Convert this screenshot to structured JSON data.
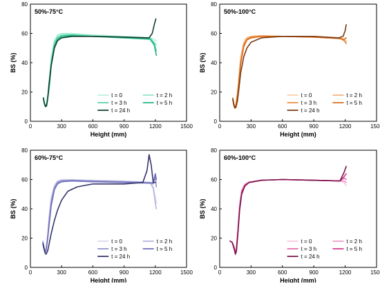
{
  "chart_data": [
    {
      "type": "line",
      "title": "50%-75°C",
      "xlabel": "Height (mm)",
      "ylabel": "BS (%)",
      "xlim": [
        0,
        1500
      ],
      "ylim": [
        0,
        80
      ],
      "xticks": [
        "0",
        "300",
        "600",
        "900",
        "1200",
        "1500"
      ],
      "yticks": [
        "0",
        "20",
        "40",
        "60",
        "80"
      ],
      "legend_placement": "bottom-right",
      "series": [
        {
          "name": "t = 0",
          "color": "#b9f1dd",
          "x": [
            125,
            135,
            145,
            155,
            170,
            185,
            200,
            230,
            260,
            300,
            400,
            600,
            900,
            1150,
            1190,
            1210
          ],
          "y": [
            14,
            12,
            11,
            12,
            20,
            32,
            44,
            55,
            59,
            60,
            60,
            59,
            58,
            57,
            56,
            55
          ]
        },
        {
          "name": "t = 2 h",
          "color": "#8fe5c7",
          "x": [
            125,
            135,
            145,
            155,
            170,
            185,
            200,
            230,
            260,
            300,
            400,
            600,
            900,
            1150,
            1190,
            1210
          ],
          "y": [
            15,
            12,
            11,
            12,
            19,
            30,
            42,
            54,
            58,
            59.5,
            59.5,
            58.5,
            57.5,
            57,
            54,
            52
          ]
        },
        {
          "name": "t = 3 h",
          "color": "#56d2a5",
          "x": [
            125,
            135,
            145,
            155,
            170,
            185,
            200,
            230,
            260,
            300,
            400,
            600,
            900,
            1150,
            1190,
            1210
          ],
          "y": [
            16,
            12,
            11,
            12,
            18,
            28,
            40,
            53,
            57,
            58.5,
            59,
            58,
            57.5,
            56.5,
            53,
            48
          ]
        },
        {
          "name": "t = 5 h",
          "color": "#1fb487",
          "x": [
            125,
            135,
            145,
            155,
            170,
            185,
            200,
            230,
            260,
            300,
            400,
            600,
            900,
            1150,
            1190,
            1210
          ],
          "y": [
            16,
            12,
            10.5,
            11,
            17,
            26,
            38,
            51,
            56,
            58,
            58.5,
            58,
            57,
            56,
            52,
            45
          ]
        },
        {
          "name": "t = 24 h",
          "color": "#0f3d2c",
          "x": [
            125,
            135,
            145,
            155,
            165,
            180,
            200,
            230,
            260,
            300,
            400,
            600,
            900,
            1140,
            1170,
            1190,
            1205
          ],
          "y": [
            16,
            12,
            10,
            10.5,
            15,
            26,
            38,
            50,
            55,
            57,
            58,
            58,
            57.5,
            57,
            60,
            66,
            70
          ]
        }
      ]
    },
    {
      "type": "line",
      "title": "50%-100°C",
      "xlabel": "Height (mm)",
      "ylabel": "BS (%)",
      "xlim": [
        0,
        1500
      ],
      "ylim": [
        0,
        80
      ],
      "xticks": [
        "0",
        "300",
        "600",
        "900",
        "1200",
        "1500"
      ],
      "yticks": [
        "0",
        "20",
        "40",
        "60",
        "80"
      ],
      "legend_placement": "bottom-right",
      "series": [
        {
          "name": "t = 0",
          "color": "#f7cfa6",
          "x": [
            125,
            135,
            145,
            155,
            170,
            185,
            200,
            230,
            260,
            300,
            400,
            600,
            900,
            1150,
            1190,
            1210
          ],
          "y": [
            15,
            12,
            10,
            12,
            20,
            32,
            44,
            54,
            57,
            58,
            58.5,
            58,
            57.5,
            57,
            56,
            55
          ]
        },
        {
          "name": "t = 2 h",
          "color": "#f3b27a",
          "x": [
            125,
            135,
            145,
            155,
            170,
            185,
            200,
            230,
            260,
            300,
            400,
            600,
            900,
            1150,
            1190,
            1210
          ],
          "y": [
            15,
            12,
            10,
            11.5,
            19,
            30,
            42,
            53,
            57,
            58,
            58.5,
            58,
            57.5,
            57,
            55.5,
            54
          ]
        },
        {
          "name": "t = 3 h",
          "color": "#eb8b3c",
          "x": [
            125,
            135,
            145,
            155,
            170,
            185,
            200,
            230,
            260,
            300,
            400,
            600,
            900,
            1150,
            1190,
            1210
          ],
          "y": [
            15,
            12,
            10,
            11,
            18,
            28,
            40,
            52,
            56,
            57.5,
            58,
            58,
            57.5,
            56.5,
            55,
            53
          ]
        },
        {
          "name": "t = 5 h",
          "color": "#d86a18",
          "x": [
            125,
            135,
            145,
            155,
            170,
            185,
            200,
            230,
            260,
            300,
            400,
            600,
            900,
            1150,
            1190,
            1210
          ],
          "y": [
            16,
            12,
            9.5,
            10.5,
            17,
            27,
            39,
            51,
            55.5,
            57,
            58,
            58,
            57.5,
            56.5,
            56,
            57
          ]
        },
        {
          "name": "t = 24 h",
          "color": "#7a3a12",
          "x": [
            125,
            135,
            145,
            155,
            170,
            185,
            200,
            230,
            260,
            300,
            400,
            600,
            900,
            1140,
            1180,
            1200,
            1210
          ],
          "y": [
            15,
            11,
            9,
            9.5,
            14,
            23,
            33,
            44,
            50,
            54,
            57,
            58,
            58,
            57,
            58,
            62,
            66
          ]
        }
      ]
    },
    {
      "type": "line",
      "title": "60%-75°C",
      "xlabel": "Height (mm)",
      "ylabel": "BS (%)",
      "xlim": [
        0,
        1500
      ],
      "ylim": [
        0,
        80
      ],
      "xticks": [
        "0",
        "300",
        "600",
        "900",
        "1200",
        "1500"
      ],
      "yticks": [
        "0",
        "20",
        "40",
        "60",
        "80"
      ],
      "legend_placement": "bottom-right",
      "series": [
        {
          "name": "t = 0",
          "color": "#d7d7ef",
          "x": [
            120,
            130,
            140,
            150,
            165,
            180,
            200,
            230,
            260,
            300,
            400,
            600,
            900,
            1150,
            1180,
            1200,
            1210
          ],
          "y": [
            18,
            14,
            11,
            12,
            22,
            35,
            48,
            56,
            59,
            60,
            60,
            59.5,
            59,
            58,
            55,
            48,
            44
          ]
        },
        {
          "name": "t = 2 h",
          "color": "#b3b3df",
          "x": [
            120,
            130,
            140,
            150,
            165,
            180,
            200,
            230,
            260,
            300,
            400,
            600,
            900,
            1150,
            1180,
            1200,
            1210
          ],
          "y": [
            18,
            14,
            11,
            12,
            21,
            33,
            46,
            55,
            58.5,
            59.5,
            59.5,
            59,
            58.5,
            58,
            54,
            44,
            40
          ]
        },
        {
          "name": "t = 3 h",
          "color": "#9090cc",
          "x": [
            120,
            130,
            140,
            150,
            165,
            180,
            200,
            230,
            260,
            300,
            400,
            600,
            900,
            1150,
            1180,
            1200,
            1210
          ],
          "y": [
            17,
            14,
            11,
            12,
            20,
            31,
            44,
            54,
            58,
            59,
            59.5,
            59,
            58.5,
            58,
            57,
            62,
            55
          ]
        },
        {
          "name": "t = 5 h",
          "color": "#6e6eb8",
          "x": [
            120,
            130,
            140,
            150,
            165,
            180,
            200,
            230,
            260,
            300,
            400,
            600,
            900,
            1150,
            1180,
            1200,
            1210
          ],
          "y": [
            17,
            13,
            10.5,
            11,
            19,
            29,
            42,
            53,
            57,
            58.5,
            59,
            58.5,
            58,
            57.5,
            58,
            64,
            60
          ]
        },
        {
          "name": "t = 24 h",
          "color": "#33336b",
          "x": [
            120,
            130,
            140,
            150,
            165,
            180,
            200,
            230,
            260,
            300,
            360,
            450,
            600,
            900,
            1080,
            1120,
            1140,
            1160,
            1180,
            1200
          ],
          "y": [
            16,
            13,
            10,
            9,
            11,
            16,
            23,
            32,
            39,
            46,
            52,
            55,
            57,
            57,
            58,
            66,
            77,
            70,
            58,
            58
          ]
        }
      ]
    },
    {
      "type": "line",
      "title": "60%-100°C",
      "xlabel": "Height (mm)",
      "ylabel": "BS (%)",
      "xlim": [
        0,
        1500
      ],
      "ylim": [
        0,
        80
      ],
      "xticks": [
        "0",
        "300",
        "600",
        "900",
        "1200",
        "1500"
      ],
      "yticks": [
        "0",
        "20",
        "40",
        "60",
        "80"
      ],
      "legend_placement": "bottom-right",
      "series": [
        {
          "name": "t = 0",
          "color": "#f7c6e0",
          "x": [
            100,
            120,
            140,
            150,
            160,
            175,
            190,
            210,
            240,
            280,
            400,
            600,
            900,
            1150,
            1190,
            1210
          ],
          "y": [
            18,
            17,
            14,
            11,
            14,
            28,
            43,
            53,
            57,
            58.5,
            59.5,
            60,
            59.5,
            59,
            58,
            56
          ]
        },
        {
          "name": "t = 2 h",
          "color": "#f09ac7",
          "x": [
            100,
            120,
            140,
            150,
            160,
            175,
            190,
            210,
            240,
            280,
            400,
            600,
            900,
            1150,
            1190,
            1210
          ],
          "y": [
            18,
            17,
            13,
            10.5,
            13,
            27,
            42,
            52,
            56.5,
            58,
            59.5,
            60,
            59.5,
            59,
            59,
            58
          ]
        },
        {
          "name": "t = 3 h",
          "color": "#e56aab",
          "x": [
            100,
            120,
            140,
            150,
            160,
            175,
            190,
            210,
            240,
            280,
            400,
            600,
            900,
            1150,
            1190,
            1210
          ],
          "y": [
            18,
            17,
            13,
            10,
            12.5,
            26,
            41,
            52,
            56,
            58,
            59.5,
            60,
            59.5,
            59,
            61,
            60
          ]
        },
        {
          "name": "t = 5 h",
          "color": "#d13b8e",
          "x": [
            100,
            120,
            140,
            150,
            160,
            175,
            190,
            210,
            240,
            280,
            400,
            600,
            900,
            1150,
            1190,
            1210
          ],
          "y": [
            18,
            17,
            13,
            10,
            12,
            25,
            40,
            51,
            56,
            58,
            59.5,
            60,
            59.5,
            59,
            62,
            64
          ]
        },
        {
          "name": "t = 24 h",
          "color": "#7a1248",
          "x": [
            100,
            120,
            140,
            150,
            160,
            175,
            190,
            210,
            240,
            280,
            400,
            600,
            900,
            1150,
            1190,
            1210
          ],
          "y": [
            18,
            17,
            12,
            9,
            11,
            24,
            39,
            50,
            55.5,
            58,
            59.5,
            60,
            59.5,
            59,
            65,
            69
          ]
        }
      ]
    }
  ]
}
